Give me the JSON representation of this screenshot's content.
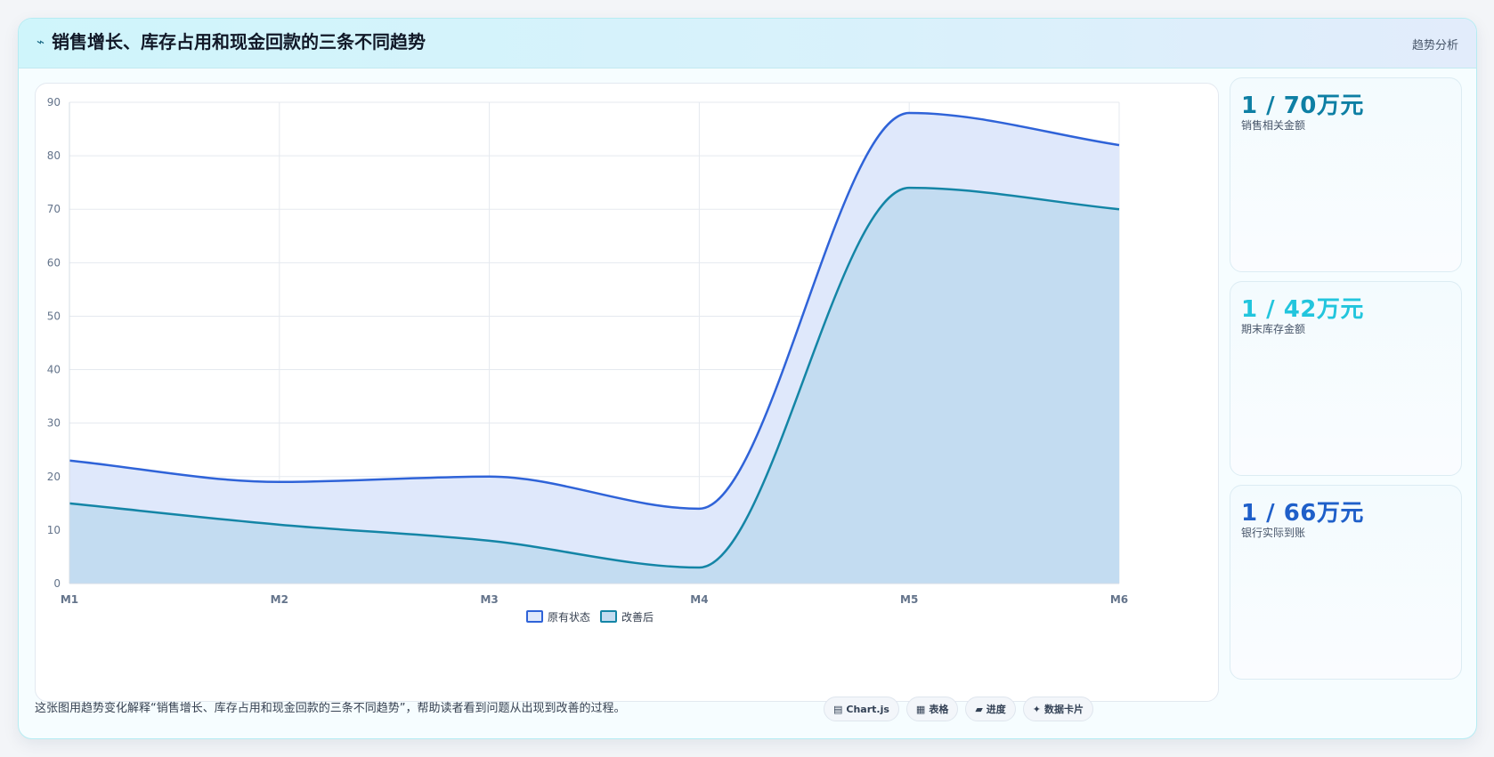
{
  "header": {
    "icon": "wave-icon",
    "title": "销售增长、库存占用和现金回款的三条不同趋势",
    "tag": "趋势分析"
  },
  "kpis": [
    {
      "value": "1 / 70万元",
      "label": "销售相关金额",
      "color": "#0e7fa4"
    },
    {
      "value": "1 / 42万元",
      "label": "期末库存金额",
      "color": "#22c5dd"
    },
    {
      "value": "1 / 66万元",
      "label": "银行实际到账",
      "color": "#1f5fc9"
    }
  ],
  "footer": {
    "text": "这张图用趋势变化解释“销售增长、库存占用和现金回款的三条不同趋势”，帮助读者看到问题从出现到改善的过程。",
    "chips": [
      {
        "icon": "chart-icon",
        "glyph": "▤",
        "label": "Chart.js"
      },
      {
        "icon": "table-icon",
        "glyph": "▦",
        "label": "表格"
      },
      {
        "icon": "progress-icon",
        "glyph": "▰",
        "label": "进度"
      },
      {
        "icon": "sparkle-icon",
        "glyph": "✦",
        "label": "数据卡片"
      }
    ]
  },
  "chart_data": {
    "type": "area",
    "categories": [
      "M1",
      "M2",
      "M3",
      "M4",
      "M5",
      "M6"
    ],
    "ylim": [
      0,
      90
    ],
    "yticks": [
      0,
      10,
      20,
      30,
      40,
      50,
      60,
      70,
      80,
      90
    ],
    "grid": true,
    "legend_position": "bottom",
    "series": [
      {
        "name": "原有状态",
        "values": [
          23,
          19,
          20,
          14,
          88,
          82
        ],
        "color": "#2f63d8",
        "fill": "#dfe8fb"
      },
      {
        "name": "改善后",
        "values": [
          15,
          11,
          8,
          3,
          74,
          70
        ],
        "color": "#1485a6",
        "fill": "#c3dcf1"
      }
    ]
  }
}
